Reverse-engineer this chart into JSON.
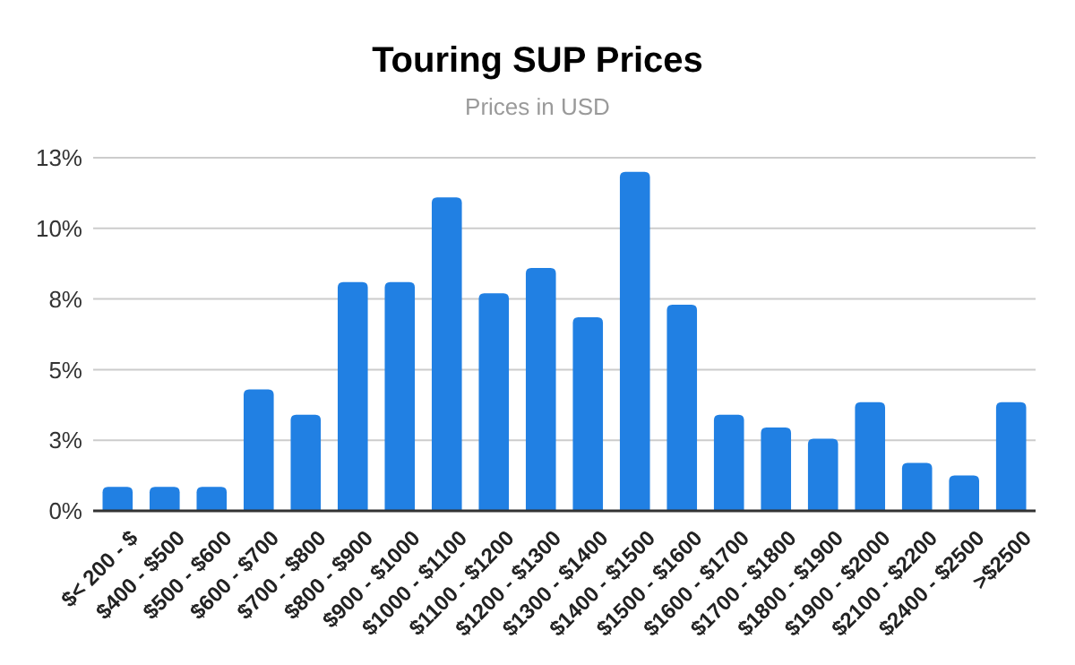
{
  "chart_data": {
    "type": "bar",
    "title": "Touring SUP Prices",
    "subtitle": "Prices in USD",
    "categories": [
      "$< 200 - $",
      "$400 - $500",
      "$500 - $600",
      "$600 - $700",
      "$700 - $800",
      "$800 - $900",
      "$900 - $1000",
      "$1000 - $1100",
      "$1100 - $1200",
      "$1200 - $1300",
      "$1300 - $1400",
      "$1400 - $1500",
      "$1500 - $1600",
      "$1600 - $1700",
      "$1700 - $1800",
      "$1800 - $1900",
      "$1900 - $2000",
      "$2100 - $2200",
      "$2400 - $2500",
      ">$2500"
    ],
    "values": [
      0.85,
      0.85,
      0.85,
      4.3,
      3.4,
      8.1,
      8.1,
      11.1,
      7.7,
      8.6,
      6.85,
      12.0,
      7.3,
      3.4,
      2.95,
      2.55,
      3.85,
      1.7,
      1.25,
      3.85
    ],
    "color": "#2180e3",
    "ylim": [
      0,
      12.5
    ],
    "yticks": [
      {
        "value": 0,
        "label": "0%"
      },
      {
        "value": 2.5,
        "label": "3%"
      },
      {
        "value": 5,
        "label": "5%"
      },
      {
        "value": 7.5,
        "label": "8%"
      },
      {
        "value": 10,
        "label": "10%"
      },
      {
        "value": 12.5,
        "label": "13%"
      }
    ],
    "grid": "y"
  }
}
